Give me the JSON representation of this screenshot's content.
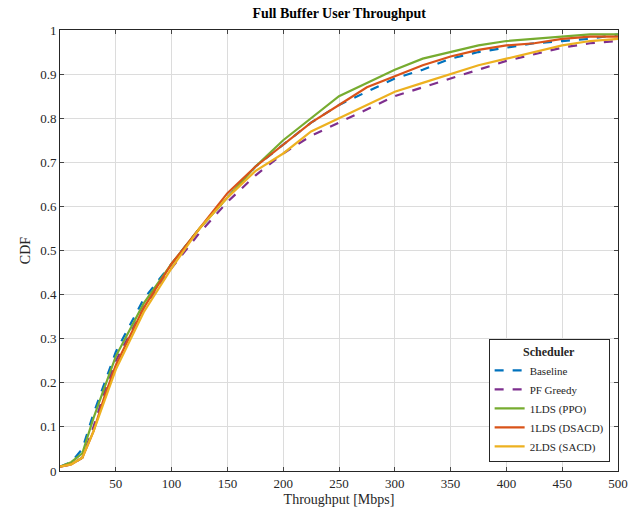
{
  "chart_data": {
    "type": "line",
    "title": "Full Buffer User Throughput",
    "x_label": "Throughput [Mbps]",
    "y_label": "CDF",
    "legend_title": "Scheduler",
    "legend": "bottom right",
    "grid": true,
    "xlim": [
      0,
      500
    ],
    "ylim": [
      0,
      1
    ],
    "xticks": [
      50,
      100,
      150,
      200,
      250,
      300,
      350,
      400,
      450,
      500
    ],
    "yticks": [
      0,
      0.1,
      0.2,
      0.3,
      0.4,
      0.5,
      0.6,
      0.7,
      0.8,
      0.9,
      1
    ],
    "x": [
      0,
      10,
      20,
      30,
      40,
      50,
      75,
      100,
      125,
      150,
      175,
      200,
      225,
      250,
      275,
      300,
      325,
      350,
      375,
      400,
      425,
      450,
      475,
      500
    ],
    "series": [
      {
        "name": "Baseline",
        "color": "#0072BD",
        "line_style": "dashed",
        "values": [
          0.01,
          0.02,
          0.05,
          0.13,
          0.2,
          0.27,
          0.39,
          0.47,
          0.55,
          0.62,
          0.69,
          0.74,
          0.79,
          0.83,
          0.86,
          0.89,
          0.91,
          0.935,
          0.95,
          0.96,
          0.97,
          0.975,
          0.98,
          0.99
        ]
      },
      {
        "name": "PF Greedy",
        "color": "#7E2F8E",
        "line_style": "dashed",
        "values": [
          0.01,
          0.015,
          0.03,
          0.1,
          0.18,
          0.25,
          0.37,
          0.46,
          0.54,
          0.61,
          0.67,
          0.72,
          0.76,
          0.79,
          0.82,
          0.85,
          0.87,
          0.89,
          0.91,
          0.93,
          0.945,
          0.96,
          0.97,
          0.975
        ]
      },
      {
        "name": "1LDS (PPO)",
        "color": "#77AC30",
        "line_style": "solid",
        "values": [
          0.01,
          0.02,
          0.04,
          0.12,
          0.19,
          0.26,
          0.38,
          0.47,
          0.55,
          0.62,
          0.69,
          0.75,
          0.8,
          0.85,
          0.88,
          0.91,
          0.935,
          0.95,
          0.965,
          0.975,
          0.98,
          0.985,
          0.99,
          0.99
        ]
      },
      {
        "name": "1LDS (DSACD)",
        "color": "#D95319",
        "line_style": "solid",
        "values": [
          0.01,
          0.015,
          0.03,
          0.09,
          0.17,
          0.24,
          0.37,
          0.47,
          0.55,
          0.63,
          0.69,
          0.74,
          0.79,
          0.83,
          0.87,
          0.895,
          0.92,
          0.94,
          0.955,
          0.965,
          0.97,
          0.98,
          0.985,
          0.985
        ]
      },
      {
        "name": "2LDS (SACD)",
        "color": "#EDB120",
        "line_style": "solid",
        "values": [
          0.01,
          0.015,
          0.03,
          0.09,
          0.16,
          0.23,
          0.36,
          0.46,
          0.55,
          0.62,
          0.68,
          0.72,
          0.77,
          0.8,
          0.83,
          0.86,
          0.88,
          0.9,
          0.92,
          0.935,
          0.95,
          0.965,
          0.975,
          0.98
        ]
      }
    ]
  }
}
